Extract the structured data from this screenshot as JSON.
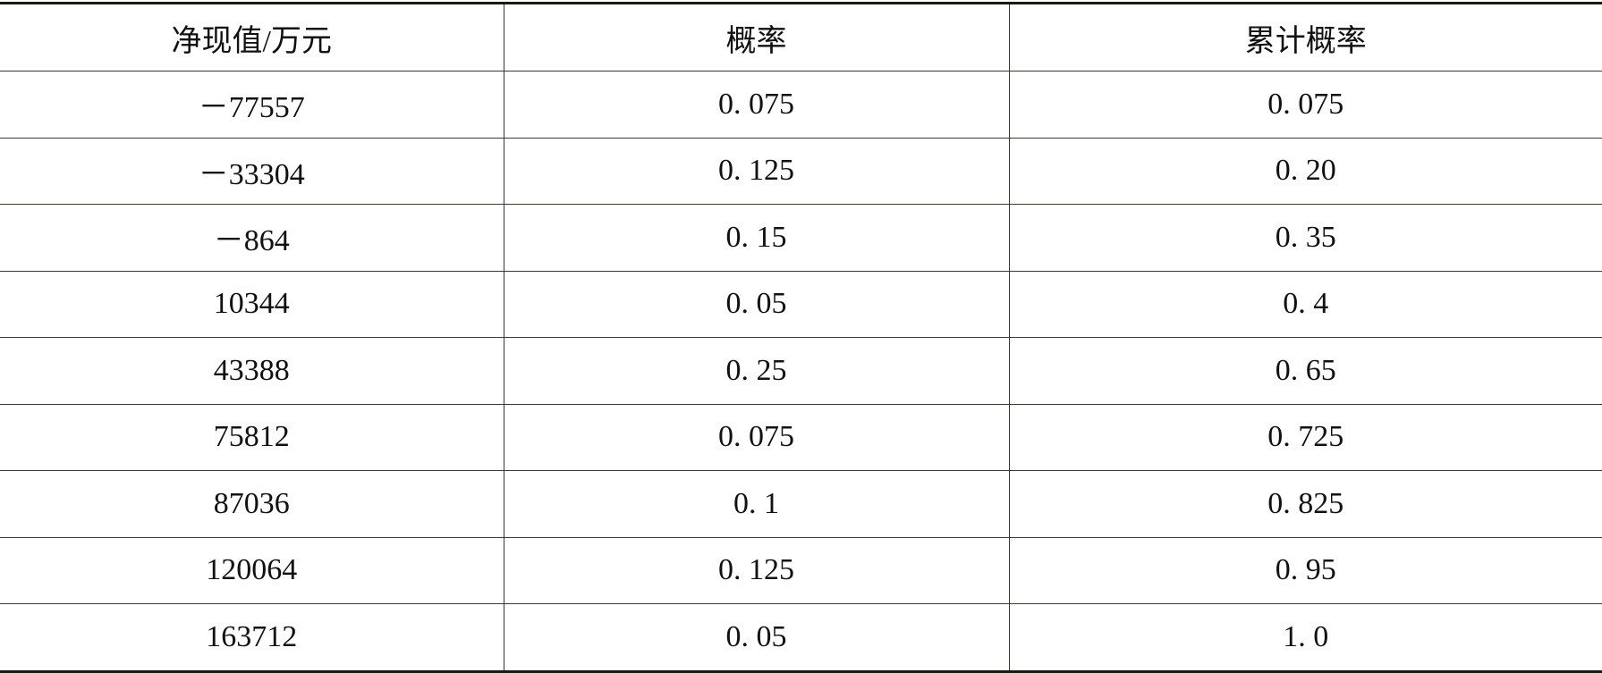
{
  "table": {
    "headers": [
      "净现值/万元",
      "概率",
      "累计概率"
    ],
    "rows": [
      [
        "－77557",
        "0. 075",
        "0. 075"
      ],
      [
        "－33304",
        "0. 125",
        "0. 20"
      ],
      [
        "－864",
        "0. 15",
        "0. 35"
      ],
      [
        "10344",
        "0. 05",
        "0. 4"
      ],
      [
        "43388",
        "0. 25",
        "0. 65"
      ],
      [
        "75812",
        "0. 075",
        "0. 725"
      ],
      [
        "87036",
        "0. 1",
        "0. 825"
      ],
      [
        "120064",
        "0. 125",
        "0. 95"
      ],
      [
        "163712",
        "0. 05",
        "1. 0"
      ]
    ]
  }
}
